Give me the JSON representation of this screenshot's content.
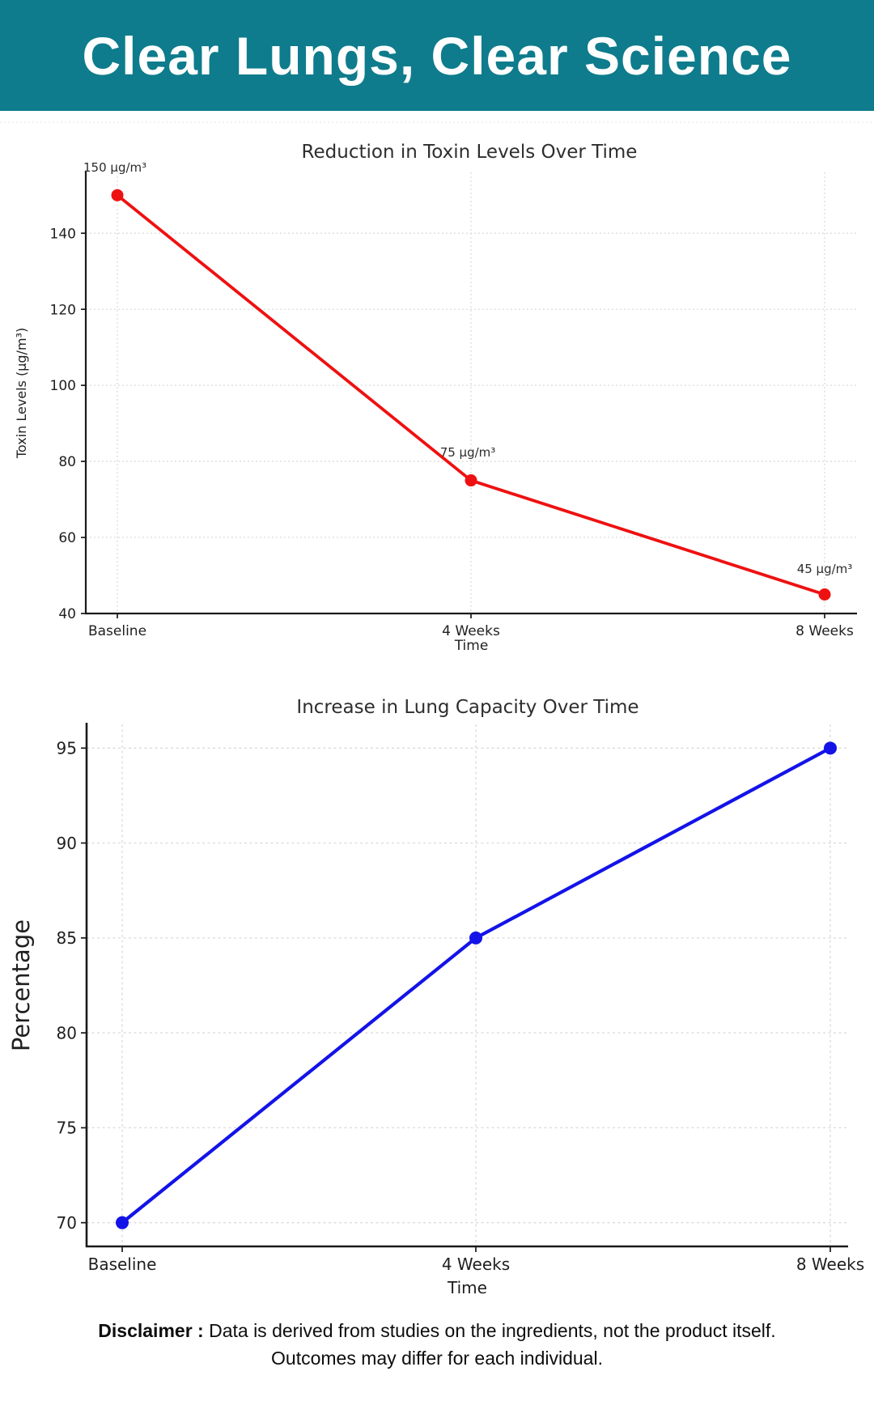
{
  "header": {
    "title": "Clear Lungs, Clear Science",
    "bg_color": "#0e7c8c",
    "text_color": "#ffffff"
  },
  "chart_data": [
    {
      "type": "line",
      "title": "Reduction in Toxin Levels Over Time",
      "xlabel": "Time",
      "ylabel": "Toxin Levels (µg/m³)",
      "categories": [
        "Baseline",
        "4 Weeks",
        "8 Weeks"
      ],
      "values": [
        150,
        75,
        45
      ],
      "point_labels": [
        "150 µg/m³",
        "75 µg/m³",
        "45 µg/m³"
      ],
      "yticks": [
        40,
        60,
        80,
        100,
        120,
        140
      ],
      "ylim": [
        40,
        156
      ],
      "line_color": "#ee1111",
      "grid": "dotted",
      "grid_color": "#d7d7d7",
      "legend": "none"
    },
    {
      "type": "line",
      "title": "Increase in Lung Capacity Over Time",
      "xlabel": "Time",
      "ylabel": "Percentage",
      "categories": [
        "Baseline",
        "4 Weeks",
        "8 Weeks"
      ],
      "values": [
        70,
        85,
        95
      ],
      "point_labels": [],
      "yticks": [
        70,
        75,
        80,
        85,
        90,
        95
      ],
      "ylim": [
        68.75,
        96.25
      ],
      "line_color": "#1313e8",
      "grid": "dashed",
      "grid_color": "#dadada",
      "legend": "none"
    }
  ],
  "footer": {
    "disclaimer_label": "Disclaimer :",
    "disclaimer_line1": "Data is derived from studies on the ingredients, not the product itself.",
    "disclaimer_line2": "Outcomes may differ for each individual."
  }
}
